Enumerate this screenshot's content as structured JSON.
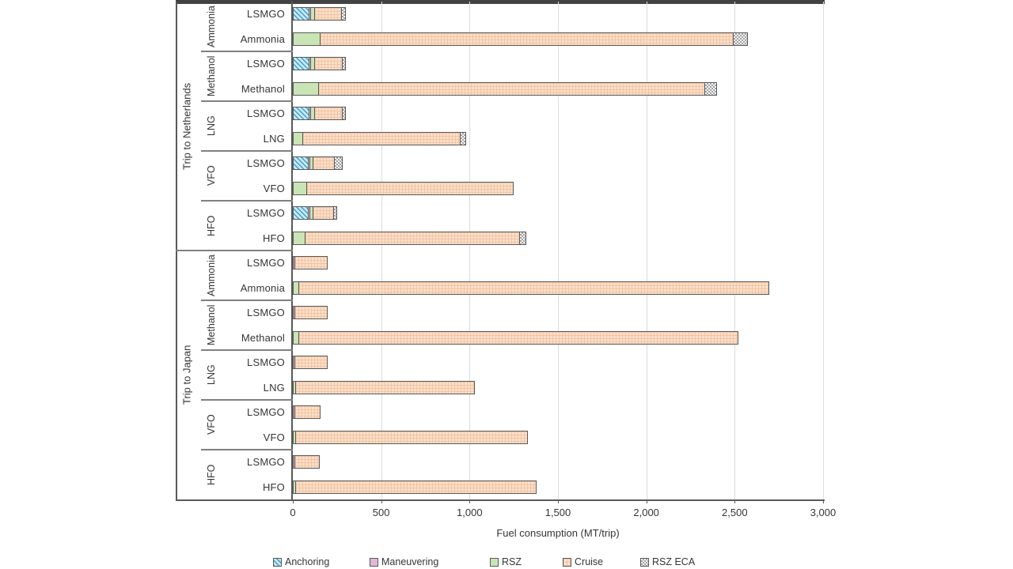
{
  "figure": {
    "background": "#ffffff",
    "axis_color": "#595959",
    "grid_color": "#dcdcdc",
    "divider_color": "#808080",
    "text_color": "#353535"
  },
  "chart_data": {
    "type": "bar",
    "orientation": "horizontal",
    "stacked": true,
    "title": "",
    "xlabel": "Fuel consumption (MT/trip)",
    "xlim": [
      0,
      3000
    ],
    "xtick_values": [
      0,
      500,
      1000,
      1500,
      2000,
      2500,
      3000
    ],
    "xtick_labels": [
      "0",
      "500",
      "1,000",
      "1,500",
      "2,000",
      "2,500",
      "3,000"
    ],
    "grid": true,
    "legend_position": "bottom",
    "segments": [
      {
        "name": "Anchoring",
        "key": "anchoring",
        "color": "#c7e8f5",
        "pattern": "diagonal-stripes",
        "pattern_color": "#3f9fc9"
      },
      {
        "name": "Maneuvering",
        "key": "maneuvering",
        "color": "#e2b6d8",
        "pattern": "solid",
        "pattern_color": "#e2b6d8"
      },
      {
        "name": "RSZ",
        "key": "rsz",
        "color": "#c9e5b5",
        "pattern": "solid",
        "pattern_color": "#c9e5b5"
      },
      {
        "name": "Cruise",
        "key": "cruise",
        "color": "#fcdfc9",
        "pattern": "grid",
        "pattern_color": "#f0c5a5"
      },
      {
        "name": "RSZ ECA",
        "key": "rsz_eca",
        "color": "#f5f5f5",
        "pattern": "checker",
        "pattern_color": "#a3a3a3"
      }
    ],
    "segment_order": [
      "anchoring",
      "maneuvering",
      "rsz",
      "cruise",
      "rsz_eca"
    ],
    "groups": [
      {
        "trip": "Trip to Netherlands",
        "fuels": [
          {
            "fuel": "Ammonia",
            "bars": [
              {
                "label": "LSMGO",
                "values": [
                  90,
                  10,
                  20,
                  155,
                  15
                ],
                "total": 290
              },
              {
                "label": "Ammonia",
                "values": [
                  0,
                  0,
                  150,
                  2340,
                  75
                ],
                "total": 2565
              }
            ]
          },
          {
            "fuel": "Methanol",
            "bars": [
              {
                "label": "LSMGO",
                "values": [
                  90,
                  10,
                  20,
                  157,
                  13
                ],
                "total": 290
              },
              {
                "label": "Methanol",
                "values": [
                  0,
                  0,
                  145,
                  2185,
                  60
                ],
                "total": 2390
              }
            ]
          },
          {
            "fuel": "LNG",
            "bars": [
              {
                "label": "LSMGO",
                "values": [
                  90,
                  10,
                  20,
                  158,
                  14
                ],
                "total": 292
              },
              {
                "label": "LNG",
                "values": [
                  0,
                  0,
                  55,
                  890,
                  25
                ],
                "total": 970
              }
            ]
          },
          {
            "fuel": "VFO",
            "bars": [
              {
                "label": "LSMGO",
                "values": [
                  85,
                  10,
                  18,
                  122,
                  37
                ],
                "total": 272
              },
              {
                "label": "VFO",
                "values": [
                  0,
                  0,
                  75,
                  1165,
                  0
                ],
                "total": 1240
              }
            ]
          },
          {
            "fuel": "HFO",
            "bars": [
              {
                "label": "LSMGO",
                "values": [
                  85,
                  10,
                  15,
                  117,
                  15
                ],
                "total": 242
              },
              {
                "label": "HFO",
                "values": [
                  0,
                  0,
                  65,
                  1215,
                  30
                ],
                "total": 1310
              }
            ]
          }
        ]
      },
      {
        "trip": "Trip to Japan",
        "fuels": [
          {
            "fuel": "Ammonia",
            "bars": [
              {
                "label": "LSMGO",
                "values": [
                  0,
                  10,
                  0,
                  180,
                  0
                ],
                "total": 190
              },
              {
                "label": "Ammonia",
                "values": [
                  0,
                  0,
                  30,
                  2655,
                  0
                ],
                "total": 2685
              }
            ]
          },
          {
            "fuel": "Methanol",
            "bars": [
              {
                "label": "LSMGO",
                "values": [
                  0,
                  10,
                  0,
                  180,
                  0
                ],
                "total": 190
              },
              {
                "label": "Methanol",
                "values": [
                  0,
                  0,
                  30,
                  2480,
                  0
                ],
                "total": 2510
              }
            ]
          },
          {
            "fuel": "LNG",
            "bars": [
              {
                "label": "LSMGO",
                "values": [
                  0,
                  10,
                  0,
                  180,
                  0
                ],
                "total": 190
              },
              {
                "label": "LNG",
                "values": [
                  0,
                  0,
                  12,
                  1008,
                  0
                ],
                "total": 1020
              }
            ]
          },
          {
            "fuel": "VFO",
            "bars": [
              {
                "label": "LSMGO",
                "values": [
                  0,
                  10,
                  0,
                  137,
                  0
                ],
                "total": 147
              },
              {
                "label": "VFO",
                "values": [
                  0,
                  0,
                  12,
                  1308,
                  0
                ],
                "total": 1320
              }
            ]
          },
          {
            "fuel": "HFO",
            "bars": [
              {
                "label": "LSMGO",
                "values": [
                  0,
                  10,
                  0,
                  132,
                  0
                ],
                "total": 142
              },
              {
                "label": "HFO",
                "values": [
                  0,
                  0,
                  12,
                  1360,
                  0
                ],
                "total": 1372
              }
            ]
          }
        ]
      }
    ]
  }
}
